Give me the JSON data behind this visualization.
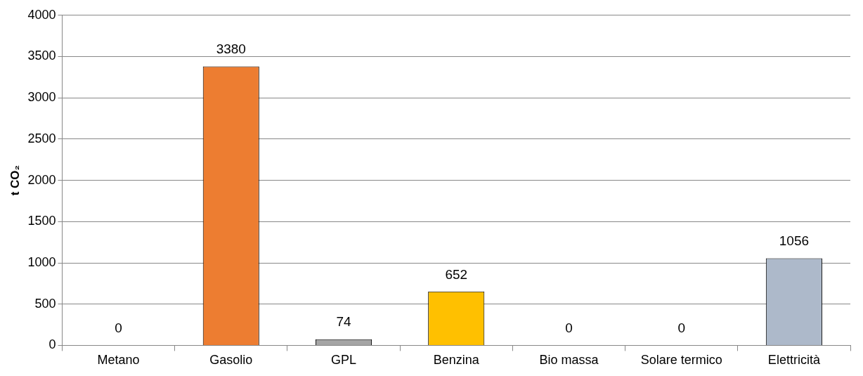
{
  "chart_data": {
    "type": "bar",
    "ylabel": "t CO₂",
    "categories": [
      "Metano",
      "Gasolio",
      "GPL",
      "Benzina",
      "Bio massa",
      "Solare termico",
      "Elettricità"
    ],
    "values": [
      0,
      3380,
      74,
      652,
      0,
      0,
      1056
    ],
    "colors": [
      "#a5a5a5",
      "#ed7d31",
      "#a5a5a5",
      "#ffc000",
      "#a5a5a5",
      "#a5a5a5",
      "#adb9ca"
    ],
    "ylim": [
      0,
      4000
    ],
    "yticks": [
      0,
      500,
      1000,
      1500,
      2000,
      2500,
      3000,
      3500,
      4000
    ],
    "grid": "y",
    "data_labels": true,
    "legend": false
  }
}
